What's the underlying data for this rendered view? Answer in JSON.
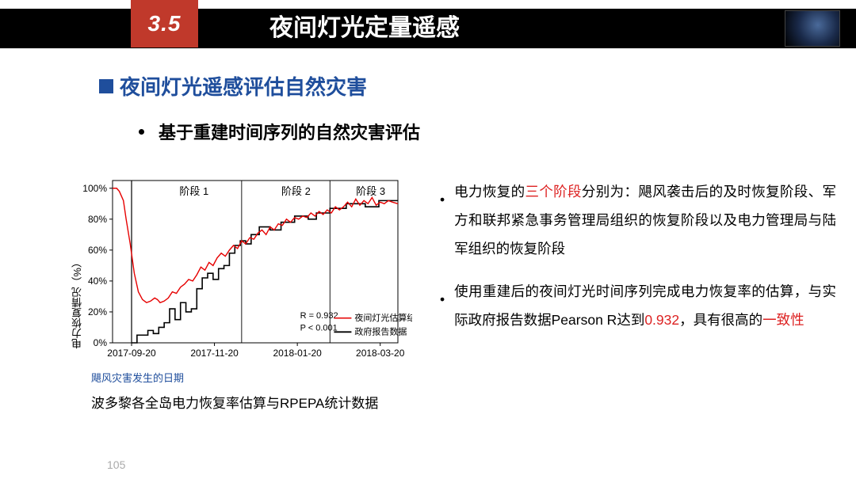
{
  "slide": {
    "section_num": "3.5",
    "title": "夜间灯光定量遥感",
    "page_number": "105"
  },
  "subtitle": "夜间灯光遥感评估自然灾害",
  "sub_bullet": "基于重建时间序列的自然灾害评估",
  "chart": {
    "type": "line",
    "y_label": "电力恢复情况（%）",
    "date_note": "飓风灾害发生的日期",
    "caption": "波多黎各全岛电力恢复率估算与RPEPA统计数据",
    "x_ticks": [
      "2017-09-20",
      "2017-11-20",
      "2018-01-20",
      "2018-03-20"
    ],
    "x_range": [
      0,
      210
    ],
    "y_ticks": [
      0,
      20,
      40,
      60,
      80,
      100
    ],
    "y_range": [
      0,
      105
    ],
    "phase_labels": [
      "阶段  1",
      "阶段  2",
      "阶段  3"
    ],
    "phase_x": [
      60,
      135,
      190
    ],
    "phase_lines_x": [
      14,
      95,
      160
    ],
    "legend": {
      "red": "夜间灯光估算结果",
      "black": "政府报告数据"
    },
    "stats": {
      "line1": "R = 0.932",
      "line2": "P < 0.001"
    },
    "red_color": "#e60000",
    "black_color": "#000000",
    "grid_color": "#aaaaaa",
    "background": "#ffffff",
    "line_width_red": 1.4,
    "line_width_black": 1.6,
    "red_series": [
      [
        0,
        100
      ],
      [
        3,
        100
      ],
      [
        5,
        98
      ],
      [
        8,
        92
      ],
      [
        10,
        80
      ],
      [
        13,
        64
      ],
      [
        16,
        45
      ],
      [
        19,
        33
      ],
      [
        22,
        28
      ],
      [
        25,
        26
      ],
      [
        28,
        27
      ],
      [
        31,
        29
      ],
      [
        33,
        28
      ],
      [
        35,
        26
      ],
      [
        38,
        27
      ],
      [
        41,
        29
      ],
      [
        44,
        33
      ],
      [
        47,
        32
      ],
      [
        50,
        36
      ],
      [
        53,
        38
      ],
      [
        56,
        41
      ],
      [
        59,
        40
      ],
      [
        62,
        44
      ],
      [
        65,
        49
      ],
      [
        68,
        47
      ],
      [
        71,
        52
      ],
      [
        74,
        50
      ],
      [
        77,
        55
      ],
      [
        80,
        58
      ],
      [
        83,
        56
      ],
      [
        86,
        60
      ],
      [
        89,
        63
      ],
      [
        92,
        61
      ],
      [
        95,
        66
      ],
      [
        98,
        64
      ],
      [
        101,
        68
      ],
      [
        104,
        67
      ],
      [
        107,
        71
      ],
      [
        110,
        73
      ],
      [
        113,
        70
      ],
      [
        116,
        75
      ],
      [
        119,
        73
      ],
      [
        122,
        77
      ],
      [
        125,
        76
      ],
      [
        128,
        80
      ],
      [
        131,
        78
      ],
      [
        134,
        81
      ],
      [
        137,
        80
      ],
      [
        140,
        82
      ],
      [
        143,
        81
      ],
      [
        146,
        84
      ],
      [
        149,
        82
      ],
      [
        152,
        85
      ],
      [
        155,
        83
      ],
      [
        158,
        86
      ],
      [
        161,
        84
      ],
      [
        164,
        88
      ],
      [
        167,
        86
      ],
      [
        170,
        88
      ],
      [
        173,
        91
      ],
      [
        176,
        88
      ],
      [
        179,
        93
      ],
      [
        182,
        89
      ],
      [
        185,
        92
      ],
      [
        188,
        90
      ],
      [
        191,
        94
      ],
      [
        194,
        89
      ],
      [
        197,
        91
      ],
      [
        200,
        90
      ],
      [
        203,
        92
      ],
      [
        206,
        91
      ],
      [
        210,
        90
      ]
    ],
    "black_series": [
      [
        14,
        0
      ],
      [
        18,
        0
      ],
      [
        18,
        5
      ],
      [
        22,
        5
      ],
      [
        26,
        5
      ],
      [
        26,
        8
      ],
      [
        30,
        8
      ],
      [
        30,
        6
      ],
      [
        34,
        6
      ],
      [
        34,
        10
      ],
      [
        38,
        10
      ],
      [
        38,
        13
      ],
      [
        42,
        13
      ],
      [
        42,
        22
      ],
      [
        46,
        22
      ],
      [
        46,
        15
      ],
      [
        50,
        15
      ],
      [
        50,
        26
      ],
      [
        54,
        26
      ],
      [
        54,
        20
      ],
      [
        58,
        20
      ],
      [
        58,
        22
      ],
      [
        62,
        22
      ],
      [
        62,
        35
      ],
      [
        66,
        35
      ],
      [
        66,
        42
      ],
      [
        70,
        42
      ],
      [
        70,
        45
      ],
      [
        74,
        45
      ],
      [
        74,
        41
      ],
      [
        78,
        41
      ],
      [
        78,
        48
      ],
      [
        82,
        48
      ],
      [
        82,
        50
      ],
      [
        86,
        50
      ],
      [
        86,
        58
      ],
      [
        90,
        58
      ],
      [
        90,
        63
      ],
      [
        94,
        63
      ],
      [
        94,
        66
      ],
      [
        98,
        66
      ],
      [
        98,
        64
      ],
      [
        102,
        64
      ],
      [
        102,
        70
      ],
      [
        108,
        70
      ],
      [
        108,
        75
      ],
      [
        116,
        75
      ],
      [
        116,
        73
      ],
      [
        124,
        73
      ],
      [
        124,
        78
      ],
      [
        134,
        78
      ],
      [
        134,
        82
      ],
      [
        144,
        82
      ],
      [
        144,
        80
      ],
      [
        150,
        80
      ],
      [
        150,
        84
      ],
      [
        160,
        84
      ],
      [
        160,
        87
      ],
      [
        172,
        87
      ],
      [
        172,
        90
      ],
      [
        186,
        90
      ],
      [
        186,
        88
      ],
      [
        196,
        88
      ],
      [
        196,
        92
      ],
      [
        210,
        92
      ]
    ]
  },
  "right": {
    "b1_prefix": "电力恢复的",
    "b1_red": "三个阶段",
    "b1_rest": "分别为：飓风袭击后的及时恢复阶段、军方和联邦紧急事务管理局组织的恢复阶段以及电力管理局与陆军组织的恢复阶段",
    "b2_prefix": "使用重建后的夜间灯光时间序列完成电力恢复率的估算，与实际政府报告数据Pearson R达到",
    "b2_red1": "0.932",
    "b2_mid": "，具有很高的",
    "b2_red2": "一致性"
  }
}
